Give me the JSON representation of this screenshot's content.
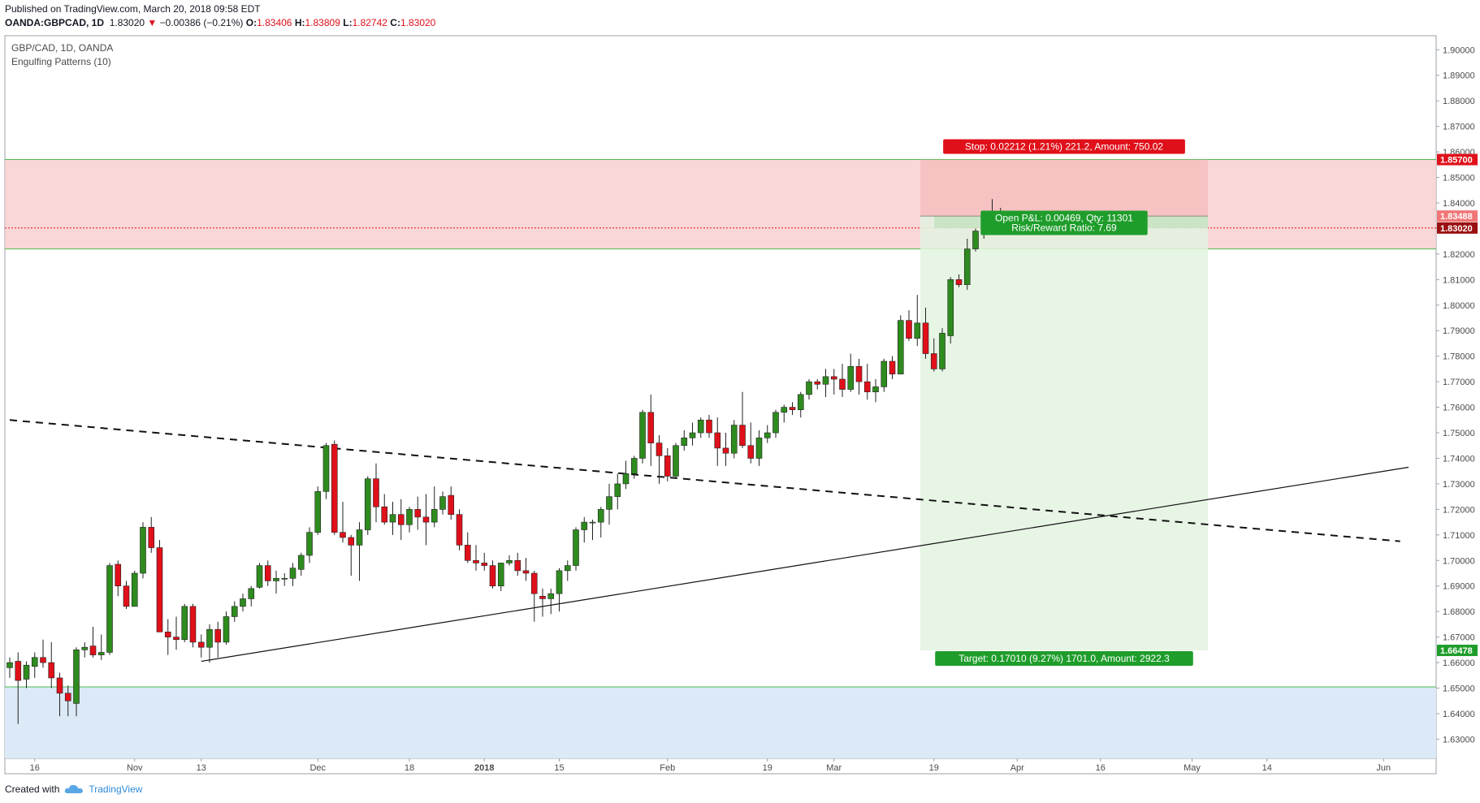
{
  "header": {
    "published": "Published on TradingView.com, March 20, 2018 09:58 EDT",
    "symbol": "OANDA:GBPCAD, 1D",
    "last": "1.83020",
    "change_arrow": "▼",
    "change": "−0.00386 (−0.21%)",
    "o_label": "O:",
    "o": "1.83406",
    "h_label": "H:",
    "h": "1.83809",
    "l_label": "L:",
    "l": "1.82742",
    "c_label": "C:",
    "c": "1.83020"
  },
  "pane": {
    "title": "GBP/CAD, 1D, OANDA",
    "indicator": "Engulfing Patterns (10)"
  },
  "position": {
    "stop_label": "Stop: 0.02212 (1.21%) 221.2, Amount: 750.02",
    "pnl_line1": "Open P&L: 0.00469, Qty: 11301",
    "pnl_line2": "Risk/Reward Ratio: 7.69",
    "target_label": "Target: 0.17010 (9.27%) 1701.0, Amount: 2922.3"
  },
  "price_tags": {
    "stop": "1.85700",
    "entry": "1.83488",
    "last": "1.83020",
    "target": "1.66478"
  },
  "footer": {
    "created_with": "Created with",
    "brand": "TradingView"
  },
  "colors": {
    "bull": "#2e8b1e",
    "bear": "#e0101a",
    "stop_zone": "#f7c9c9",
    "target_zone": "#e3f3e1",
    "support_zone": "#dce9f6",
    "zone_line": "#4cbb4c",
    "tag_red": "#e0101a",
    "tag_green": "#1f9d2b"
  },
  "chart_data": {
    "type": "candlestick",
    "y_axis_ticks": [
      "1.90000",
      "1.89000",
      "1.88000",
      "1.87000",
      "1.86000",
      "1.85000",
      "1.84000",
      "1.83000",
      "1.82000",
      "1.81000",
      "1.80000",
      "1.79000",
      "1.78000",
      "1.77000",
      "1.76000",
      "1.75000",
      "1.74000",
      "1.73000",
      "1.72000",
      "1.71000",
      "1.70000",
      "1.69000",
      "1.68000",
      "1.67000",
      "1.66000",
      "1.65000",
      "1.64000",
      "1.63000"
    ],
    "ylim": [
      1.6225,
      1.9055
    ],
    "x_ticks": [
      {
        "label": "16",
        "i": 3
      },
      {
        "label": "Nov",
        "i": 15
      },
      {
        "label": "13",
        "i": 23
      },
      {
        "label": "Dec",
        "i": 37
      },
      {
        "label": "18",
        "i": 48
      },
      {
        "label": "2018",
        "i": 57
      },
      {
        "label": "15",
        "i": 66
      },
      {
        "label": "Feb",
        "i": 79
      },
      {
        "label": "19",
        "i": 91
      },
      {
        "label": "Mar",
        "i": 99
      },
      {
        "label": "19",
        "i": 111
      },
      {
        "label": "Apr",
        "i": 121
      },
      {
        "label": "16",
        "i": 131
      },
      {
        "label": "May",
        "i": 142
      },
      {
        "label": "14",
        "i": 151
      },
      {
        "label": "Jun",
        "i": 165
      }
    ],
    "candles": [
      [
        1.658,
        1.662,
        1.654,
        1.66
      ],
      [
        1.6605,
        1.664,
        1.636,
        1.653
      ],
      [
        1.6535,
        1.6605,
        1.65,
        1.659
      ],
      [
        1.6585,
        1.664,
        1.654,
        1.662
      ],
      [
        1.662,
        1.669,
        1.658,
        1.66
      ],
      [
        1.66,
        1.668,
        1.65,
        1.654
      ],
      [
        1.654,
        1.656,
        1.639,
        1.648
      ],
      [
        1.648,
        1.651,
        1.639,
        1.645
      ],
      [
        1.644,
        1.666,
        1.639,
        1.665
      ],
      [
        1.665,
        1.668,
        1.662,
        1.666
      ],
      [
        1.6665,
        1.674,
        1.662,
        1.663
      ],
      [
        1.663,
        1.671,
        1.661,
        1.664
      ],
      [
        1.664,
        1.699,
        1.663,
        1.698
      ],
      [
        1.6985,
        1.7,
        1.686,
        1.69
      ],
      [
        1.69,
        1.692,
        1.681,
        1.682
      ],
      [
        1.682,
        1.696,
        1.682,
        1.695
      ],
      [
        1.695,
        1.715,
        1.693,
        1.713
      ],
      [
        1.713,
        1.717,
        1.703,
        1.705
      ],
      [
        1.705,
        1.708,
        1.672,
        1.672
      ],
      [
        1.672,
        1.677,
        1.663,
        1.67
      ],
      [
        1.67,
        1.678,
        1.665,
        1.669
      ],
      [
        1.669,
        1.683,
        1.668,
        1.682
      ],
      [
        1.682,
        1.683,
        1.666,
        1.668
      ],
      [
        1.668,
        1.671,
        1.662,
        1.666
      ],
      [
        1.666,
        1.675,
        1.66,
        1.673
      ],
      [
        1.673,
        1.676,
        1.662,
        1.668
      ],
      [
        1.668,
        1.68,
        1.667,
        1.678
      ],
      [
        1.678,
        1.684,
        1.676,
        1.682
      ],
      [
        1.682,
        1.687,
        1.68,
        1.685
      ],
      [
        1.685,
        1.69,
        1.682,
        1.689
      ],
      [
        1.6895,
        1.699,
        1.689,
        1.698
      ],
      [
        1.698,
        1.7,
        1.69,
        1.692
      ],
      [
        1.692,
        1.696,
        1.687,
        1.693
      ],
      [
        1.693,
        1.695,
        1.69,
        1.693
      ],
      [
        1.693,
        1.699,
        1.69,
        1.697
      ],
      [
        1.6965,
        1.703,
        1.694,
        1.702
      ],
      [
        1.702,
        1.713,
        1.699,
        1.711
      ],
      [
        1.711,
        1.729,
        1.71,
        1.727
      ],
      [
        1.727,
        1.746,
        1.724,
        1.745
      ],
      [
        1.7455,
        1.747,
        1.71,
        1.711
      ],
      [
        1.711,
        1.723,
        1.707,
        1.709
      ],
      [
        1.709,
        1.71,
        1.694,
        1.706
      ],
      [
        1.706,
        1.715,
        1.692,
        1.712
      ],
      [
        1.712,
        1.733,
        1.71,
        1.732
      ],
      [
        1.732,
        1.738,
        1.715,
        1.721
      ],
      [
        1.721,
        1.726,
        1.714,
        1.715
      ],
      [
        1.715,
        1.723,
        1.71,
        1.718
      ],
      [
        1.718,
        1.724,
        1.708,
        1.714
      ],
      [
        1.714,
        1.721,
        1.711,
        1.72
      ],
      [
        1.72,
        1.725,
        1.712,
        1.717
      ],
      [
        1.717,
        1.726,
        1.706,
        1.715
      ],
      [
        1.715,
        1.729,
        1.713,
        1.72
      ],
      [
        1.72,
        1.727,
        1.718,
        1.725
      ],
      [
        1.7255,
        1.729,
        1.716,
        1.718
      ],
      [
        1.718,
        1.72,
        1.704,
        1.706
      ],
      [
        1.706,
        1.711,
        1.699,
        1.7
      ],
      [
        1.7,
        1.706,
        1.696,
        1.699
      ],
      [
        1.699,
        1.703,
        1.696,
        1.698
      ],
      [
        1.698,
        1.7,
        1.689,
        1.69
      ],
      [
        1.69,
        1.699,
        1.688,
        1.699
      ],
      [
        1.699,
        1.702,
        1.698,
        1.7
      ],
      [
        1.7,
        1.703,
        1.694,
        1.696
      ],
      [
        1.696,
        1.701,
        1.692,
        1.695
      ],
      [
        1.695,
        1.696,
        1.676,
        1.687
      ],
      [
        1.686,
        1.689,
        1.678,
        1.685
      ],
      [
        1.685,
        1.689,
        1.679,
        1.687
      ],
      [
        1.687,
        1.697,
        1.68,
        1.696
      ],
      [
        1.696,
        1.7,
        1.692,
        1.698
      ],
      [
        1.698,
        1.713,
        1.696,
        1.712
      ],
      [
        1.712,
        1.717,
        1.707,
        1.715
      ],
      [
        1.715,
        1.716,
        1.708,
        1.715
      ],
      [
        1.715,
        1.721,
        1.709,
        1.72
      ],
      [
        1.72,
        1.73,
        1.714,
        1.725
      ],
      [
        1.725,
        1.734,
        1.72,
        1.73
      ],
      [
        1.73,
        1.739,
        1.728,
        1.734
      ],
      [
        1.734,
        1.741,
        1.732,
        1.74
      ],
      [
        1.74,
        1.759,
        1.738,
        1.758
      ],
      [
        1.758,
        1.765,
        1.737,
        1.746
      ],
      [
        1.746,
        1.749,
        1.73,
        1.741
      ],
      [
        1.741,
        1.744,
        1.731,
        1.733
      ],
      [
        1.733,
        1.746,
        1.732,
        1.745
      ],
      [
        1.745,
        1.751,
        1.743,
        1.748
      ],
      [
        1.748,
        1.754,
        1.745,
        1.75
      ],
      [
        1.75,
        1.756,
        1.748,
        1.755
      ],
      [
        1.755,
        1.757,
        1.748,
        1.75
      ],
      [
        1.75,
        1.756,
        1.737,
        1.744
      ],
      [
        1.744,
        1.75,
        1.737,
        1.742
      ],
      [
        1.742,
        1.755,
        1.74,
        1.753
      ],
      [
        1.753,
        1.766,
        1.744,
        1.745
      ],
      [
        1.745,
        1.754,
        1.738,
        1.74
      ],
      [
        1.74,
        1.751,
        1.737,
        1.748
      ],
      [
        1.748,
        1.753,
        1.746,
        1.75
      ],
      [
        1.75,
        1.759,
        1.748,
        1.758
      ],
      [
        1.758,
        1.761,
        1.754,
        1.76
      ],
      [
        1.76,
        1.762,
        1.757,
        1.759
      ],
      [
        1.759,
        1.766,
        1.756,
        1.765
      ],
      [
        1.765,
        1.771,
        1.763,
        1.77
      ],
      [
        1.77,
        1.771,
        1.767,
        1.769
      ],
      [
        1.769,
        1.775,
        1.764,
        1.772
      ],
      [
        1.772,
        1.775,
        1.765,
        1.771
      ],
      [
        1.771,
        1.777,
        1.764,
        1.767
      ],
      [
        1.767,
        1.781,
        1.766,
        1.776
      ],
      [
        1.776,
        1.779,
        1.765,
        1.77
      ],
      [
        1.77,
        1.777,
        1.763,
        1.766
      ],
      [
        1.766,
        1.771,
        1.762,
        1.768
      ],
      [
        1.768,
        1.779,
        1.766,
        1.778
      ],
      [
        1.778,
        1.78,
        1.771,
        1.773
      ],
      [
        1.773,
        1.796,
        1.773,
        1.794
      ],
      [
        1.794,
        1.798,
        1.786,
        1.787
      ],
      [
        1.787,
        1.804,
        1.784,
        1.793
      ],
      [
        1.793,
        1.799,
        1.779,
        1.781
      ],
      [
        1.781,
        1.787,
        1.774,
        1.775
      ],
      [
        1.775,
        1.791,
        1.774,
        1.789
      ],
      [
        1.788,
        1.811,
        1.785,
        1.81
      ],
      [
        1.81,
        1.812,
        1.807,
        1.808
      ],
      [
        1.808,
        1.826,
        1.806,
        1.822
      ],
      [
        1.822,
        1.83,
        1.821,
        1.829
      ],
      [
        1.829,
        1.837,
        1.826,
        1.835
      ],
      [
        1.8348,
        1.8415,
        1.832,
        1.8335
      ],
      [
        1.8341,
        1.8381,
        1.8274,
        1.8302
      ]
    ],
    "position": {
      "entry": 1.83488,
      "stop": 1.857,
      "target": 1.66478,
      "last": 1.8302
    },
    "zones": {
      "resistance": [
        1.822,
        1.857
      ],
      "support": [
        1.6225,
        1.6505
      ]
    },
    "trendlines": [
      {
        "style": "dashed",
        "from": {
          "i": 0,
          "y": 1.755
        },
        "to": {
          "i": 167,
          "y": 1.7075
        }
      },
      {
        "style": "solid",
        "from": {
          "i": 23,
          "y": 1.6605
        },
        "to": {
          "i": 168,
          "y": 1.7365
        }
      }
    ]
  }
}
